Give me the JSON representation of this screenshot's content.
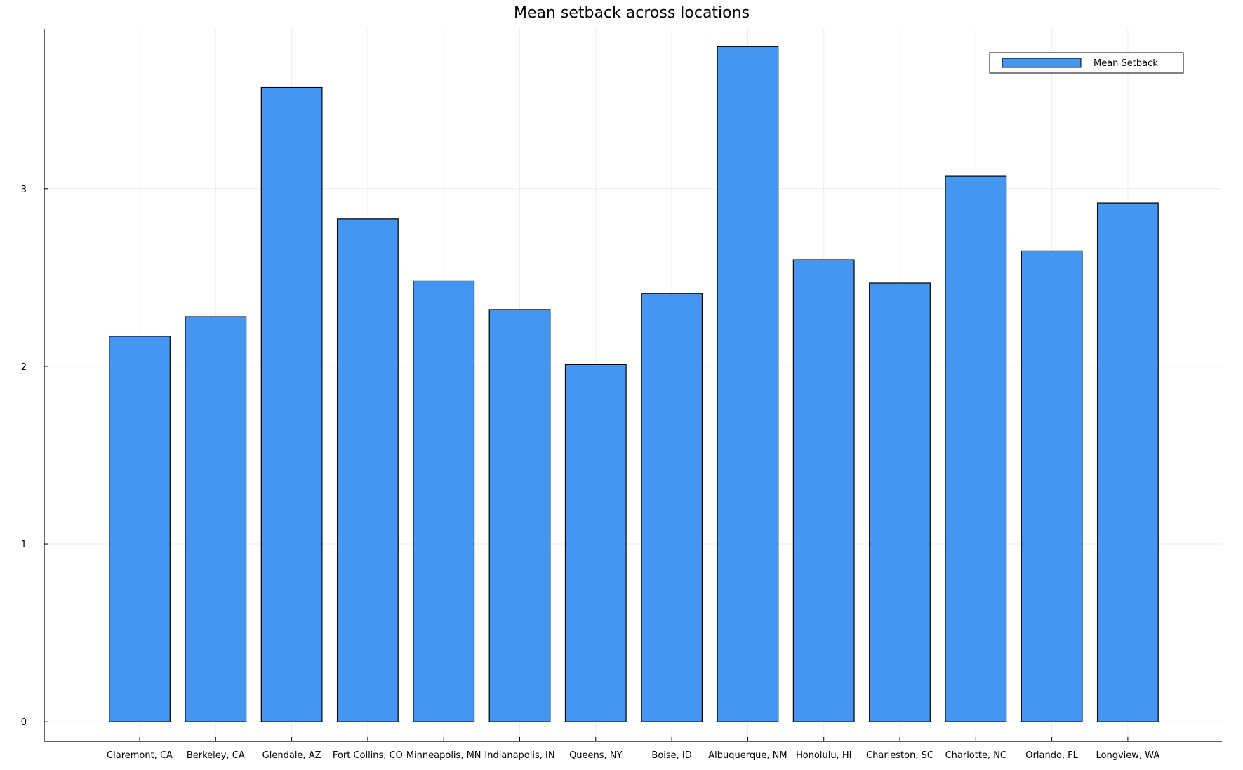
{
  "chart_data": {
    "type": "bar",
    "title": "Mean setback across locations",
    "xlabel": "",
    "ylabel": "",
    "categories": [
      "Claremont, CA",
      "Berkeley, CA",
      "Glendale, AZ",
      "Fort Collins, CO",
      "Minneapolis, MN",
      "Indianapolis, IN",
      "Queens, NY",
      "Boise, ID",
      "Albuquerque, NM",
      "Honolulu, HI",
      "Charleston, SC",
      "Charlotte, NC",
      "Orlando, FL",
      "Longview, WA"
    ],
    "series": [
      {
        "name": "Mean Setback",
        "values": [
          2.17,
          2.28,
          3.57,
          2.83,
          2.48,
          2.32,
          2.01,
          2.41,
          3.8,
          2.6,
          2.47,
          3.07,
          2.65,
          2.92
        ]
      }
    ],
    "yticks": [
      0,
      1,
      2,
      3
    ],
    "ylim": [
      -0.11,
      3.9
    ],
    "grid": true,
    "legend_position": "top-right",
    "colors": {
      "bar": "#4496f0",
      "bar_stroke": "#000000",
      "grid": "#ececec",
      "axis": "#000000"
    }
  }
}
